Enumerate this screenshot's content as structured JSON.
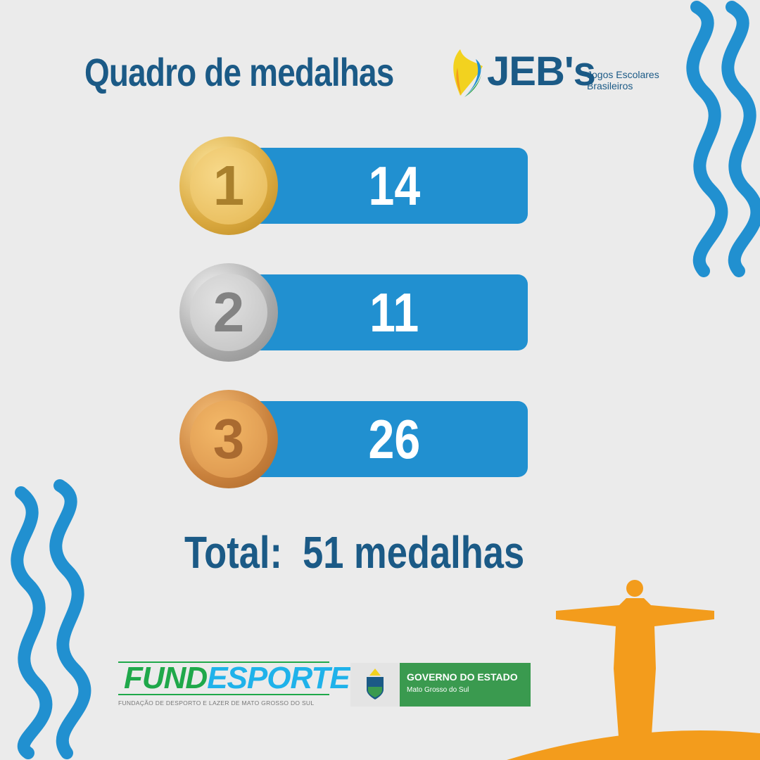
{
  "title": "Quadro de medalhas",
  "logo": {
    "name": "JEB's",
    "subtitle_line1": "Jogos Escolares",
    "subtitle_line2": "Brasileiros"
  },
  "medals": [
    {
      "place": "1",
      "type": "gold",
      "count": "14"
    },
    {
      "place": "2",
      "type": "silver",
      "count": "11"
    },
    {
      "place": "3",
      "type": "bronze",
      "count": "26"
    }
  ],
  "total": {
    "label": "Total:",
    "value": "51 medalhas"
  },
  "footer": {
    "fundesporte": {
      "part1": "FUND",
      "part2": "ESPORTE",
      "subtitle": "FUNDAÇÃO DE DESPORTO E LAZER DE MATO GROSSO DO SUL"
    },
    "government": {
      "title": "GOVERNO DO ESTADO",
      "subtitle": "Mato Grosso do Sul"
    }
  },
  "colors": {
    "background": "#ebebeb",
    "primary": "#1b5a86",
    "bar": "#2190d0",
    "accent": "#f39c1c",
    "green": "#3a9a4f"
  }
}
